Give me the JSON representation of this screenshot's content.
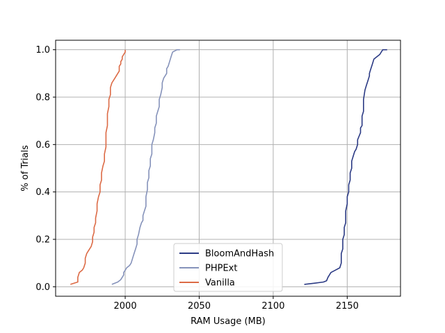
{
  "chart_data": {
    "type": "line",
    "title": "",
    "xlabel": "RAM Usage (MB)",
    "ylabel": "% of Trials",
    "xlim": [
      1953,
      2186
    ],
    "ylim": [
      -0.04,
      1.04
    ],
    "xticks": [
      2000,
      2050,
      2100,
      2150
    ],
    "xtick_labels": [
      "2000",
      "2050",
      "2100",
      "2150"
    ],
    "yticks": [
      0.0,
      0.2,
      0.4,
      0.6,
      0.8,
      1.0
    ],
    "ytick_labels": [
      "0.0",
      "0.2",
      "0.4",
      "0.6",
      "0.8",
      "1.0"
    ],
    "grid": true,
    "legend_position": "lower center",
    "series": [
      {
        "name": "BloomAndHash",
        "color": "#2b3a84",
        "points": [
          [
            2121,
            0.01
          ],
          [
            2128,
            0.015
          ],
          [
            2134,
            0.02
          ],
          [
            2136,
            0.025
          ],
          [
            2137,
            0.04
          ],
          [
            2138,
            0.05
          ],
          [
            2139,
            0.06
          ],
          [
            2142,
            0.07
          ],
          [
            2145,
            0.08
          ],
          [
            2146,
            0.1
          ],
          [
            2146,
            0.14
          ],
          [
            2147,
            0.16
          ],
          [
            2147,
            0.2
          ],
          [
            2148,
            0.22
          ],
          [
            2148,
            0.25
          ],
          [
            2149,
            0.27
          ],
          [
            2149,
            0.32
          ],
          [
            2150,
            0.35
          ],
          [
            2150,
            0.38
          ],
          [
            2151,
            0.4
          ],
          [
            2151,
            0.43
          ],
          [
            2152,
            0.45
          ],
          [
            2152,
            0.48
          ],
          [
            2153,
            0.5
          ],
          [
            2153,
            0.53
          ],
          [
            2154,
            0.55
          ],
          [
            2155,
            0.57
          ],
          [
            2156,
            0.58
          ],
          [
            2157,
            0.6
          ],
          [
            2157,
            0.62
          ],
          [
            2159,
            0.65
          ],
          [
            2159,
            0.67
          ],
          [
            2160,
            0.68
          ],
          [
            2160,
            0.72
          ],
          [
            2161,
            0.74
          ],
          [
            2161,
            0.79
          ],
          [
            2162,
            0.83
          ],
          [
            2163,
            0.85
          ],
          [
            2164,
            0.87
          ],
          [
            2165,
            0.89
          ],
          [
            2165,
            0.9
          ],
          [
            2166,
            0.92
          ],
          [
            2167,
            0.94
          ],
          [
            2168,
            0.96
          ],
          [
            2170,
            0.97
          ],
          [
            2172,
            0.98
          ],
          [
            2173,
            0.99
          ],
          [
            2174,
            1.0
          ],
          [
            2177,
            1.0
          ]
        ]
      },
      {
        "name": "PHPExt",
        "color": "#8592ba",
        "points": [
          [
            1991,
            0.01
          ],
          [
            1995,
            0.02
          ],
          [
            1997,
            0.03
          ],
          [
            1999,
            0.05
          ],
          [
            1999,
            0.06
          ],
          [
            2000,
            0.07
          ],
          [
            2001,
            0.08
          ],
          [
            2003,
            0.09
          ],
          [
            2004,
            0.1
          ],
          [
            2005,
            0.12
          ],
          [
            2006,
            0.14
          ],
          [
            2007,
            0.16
          ],
          [
            2008,
            0.18
          ],
          [
            2008,
            0.2
          ],
          [
            2009,
            0.22
          ],
          [
            2010,
            0.25
          ],
          [
            2011,
            0.27
          ],
          [
            2012,
            0.28
          ],
          [
            2012,
            0.3
          ],
          [
            2013,
            0.32
          ],
          [
            2014,
            0.34
          ],
          [
            2014,
            0.36
          ],
          [
            2014,
            0.38
          ],
          [
            2015,
            0.41
          ],
          [
            2015,
            0.44
          ],
          [
            2016,
            0.46
          ],
          [
            2016,
            0.49
          ],
          [
            2017,
            0.51
          ],
          [
            2017,
            0.54
          ],
          [
            2018,
            0.56
          ],
          [
            2018,
            0.6
          ],
          [
            2019,
            0.62
          ],
          [
            2020,
            0.65
          ],
          [
            2020,
            0.67
          ],
          [
            2021,
            0.69
          ],
          [
            2021,
            0.72
          ],
          [
            2022,
            0.74
          ],
          [
            2023,
            0.76
          ],
          [
            2023,
            0.79
          ],
          [
            2024,
            0.81
          ],
          [
            2025,
            0.84
          ],
          [
            2025,
            0.86
          ],
          [
            2026,
            0.88
          ],
          [
            2028,
            0.9
          ],
          [
            2028,
            0.92
          ],
          [
            2029,
            0.93
          ],
          [
            2030,
            0.95
          ],
          [
            2031,
            0.97
          ],
          [
            2032,
            0.99
          ],
          [
            2035,
            1.0
          ],
          [
            2037,
            1.0
          ]
        ]
      },
      {
        "name": "Vanilla",
        "color": "#dc6a45",
        "points": [
          [
            1963,
            0.01
          ],
          [
            1968,
            0.02
          ],
          [
            1968,
            0.04
          ],
          [
            1969,
            0.06
          ],
          [
            1971,
            0.07
          ],
          [
            1972,
            0.08
          ],
          [
            1973,
            0.1
          ],
          [
            1973,
            0.12
          ],
          [
            1974,
            0.14
          ],
          [
            1975,
            0.15
          ],
          [
            1977,
            0.17
          ],
          [
            1978,
            0.19
          ],
          [
            1978,
            0.21
          ],
          [
            1979,
            0.23
          ],
          [
            1979,
            0.25
          ],
          [
            1980,
            0.27
          ],
          [
            1980,
            0.29
          ],
          [
            1981,
            0.32
          ],
          [
            1981,
            0.35
          ],
          [
            1982,
            0.38
          ],
          [
            1983,
            0.4
          ],
          [
            1983,
            0.43
          ],
          [
            1984,
            0.45
          ],
          [
            1984,
            0.48
          ],
          [
            1985,
            0.51
          ],
          [
            1986,
            0.53
          ],
          [
            1986,
            0.56
          ],
          [
            1987,
            0.59
          ],
          [
            1987,
            0.62
          ],
          [
            1987,
            0.65
          ],
          [
            1988,
            0.68
          ],
          [
            1988,
            0.7
          ],
          [
            1988,
            0.73
          ],
          [
            1989,
            0.76
          ],
          [
            1989,
            0.79
          ],
          [
            1990,
            0.81
          ],
          [
            1990,
            0.84
          ],
          [
            1991,
            0.86
          ],
          [
            1993,
            0.88
          ],
          [
            1995,
            0.9
          ],
          [
            1996,
            0.91
          ],
          [
            1996,
            0.93
          ],
          [
            1997,
            0.94
          ],
          [
            1997,
            0.95
          ],
          [
            1998,
            0.96
          ],
          [
            1998,
            0.97
          ],
          [
            1999,
            0.98
          ],
          [
            2000,
            0.99
          ],
          [
            2000,
            1.0
          ]
        ]
      }
    ]
  }
}
